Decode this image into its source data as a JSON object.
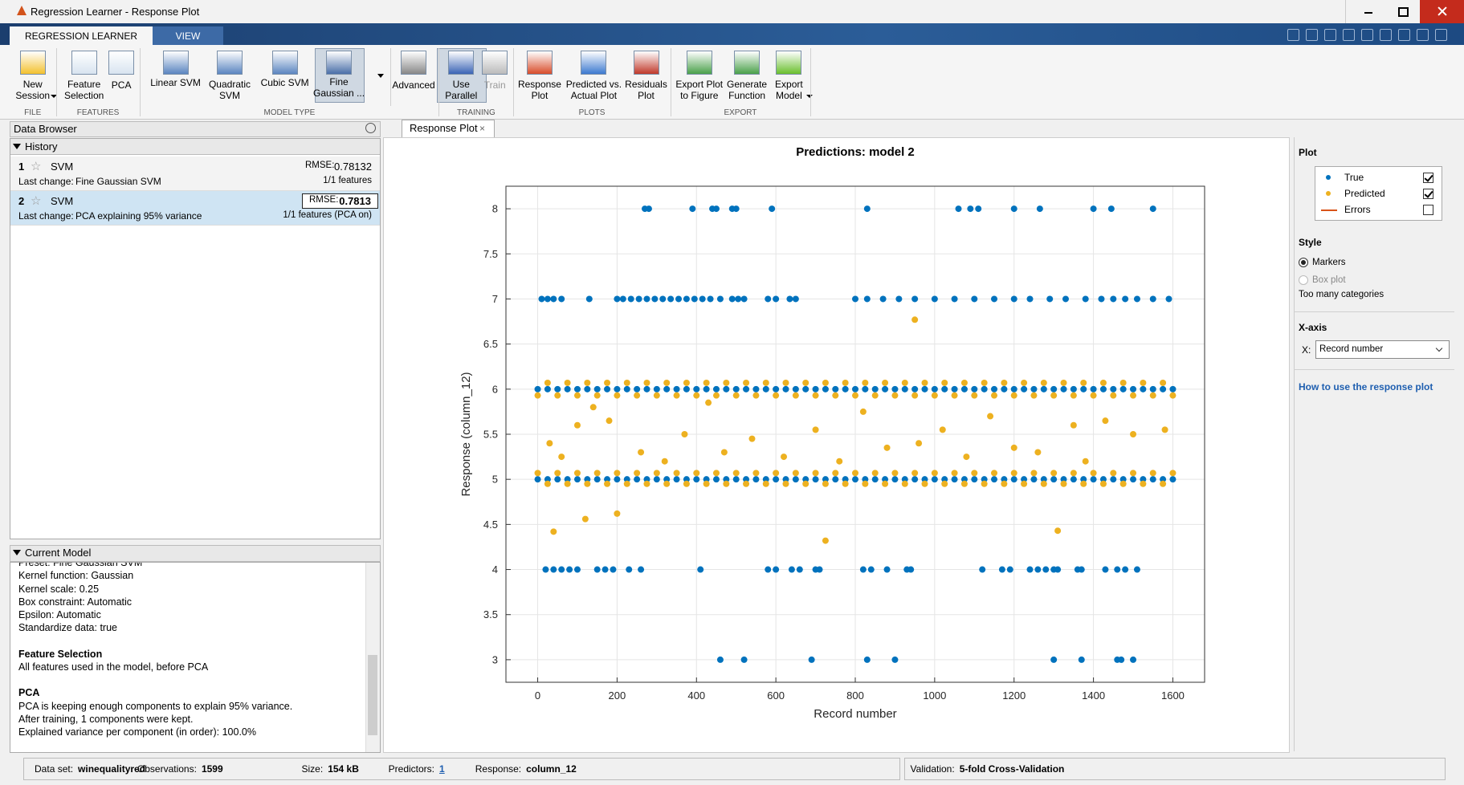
{
  "window": {
    "title": "Regression Learner - Response Plot"
  },
  "tabs": [
    "REGRESSION LEARNER",
    "VIEW"
  ],
  "toolbar": {
    "buttons": [
      {
        "lines": [
          "New",
          "Session"
        ]
      },
      {
        "lines": [
          "Feature",
          "Selection"
        ]
      },
      {
        "lines": [
          "PCA"
        ]
      },
      {
        "lines": [
          "Linear SVM"
        ]
      },
      {
        "lines": [
          "Quadratic",
          "SVM"
        ]
      },
      {
        "lines": [
          "Cubic SVM"
        ]
      },
      {
        "lines": [
          "Fine",
          "Gaussian ..."
        ]
      },
      {
        "lines": [
          "Advanced"
        ]
      },
      {
        "lines": [
          "Use",
          "Parallel"
        ]
      },
      {
        "lines": [
          "Train"
        ]
      },
      {
        "lines": [
          "Response",
          "Plot"
        ]
      },
      {
        "lines": [
          "Predicted vs.",
          "Actual Plot"
        ]
      },
      {
        "lines": [
          "Residuals",
          "Plot"
        ]
      },
      {
        "lines": [
          "Export Plot",
          "to Figure"
        ]
      },
      {
        "lines": [
          "Generate",
          "Function"
        ]
      },
      {
        "lines": [
          "Export",
          "Model"
        ]
      }
    ],
    "sections": [
      "FILE",
      "FEATURES",
      "MODEL TYPE",
      "TRAINING",
      "PLOTS",
      "EXPORT"
    ]
  },
  "data_browser": {
    "title": "Data Browser",
    "history": "History",
    "models": [
      {
        "number": "1",
        "type": "SVM",
        "rmse_label": "RMSE:",
        "rmse": "0.78132",
        "change_label": "Last change:",
        "change": "Fine Gaussian SVM",
        "features": "1/1 features"
      },
      {
        "number": "2",
        "type": "SVM",
        "rmse_label": "RMSE:",
        "rmse": "0.7813",
        "change_label": "Last change:",
        "change": "PCA explaining 95% variance",
        "features": "1/1 features (PCA on)"
      }
    ]
  },
  "current_model": {
    "title": "Current Model",
    "sections": [
      {
        "lines": [
          "Preset: Fine Gaussian SVM",
          "Kernel function: Gaussian",
          "Kernel scale: 0.25",
          "Box constraint: Automatic",
          "Epsilon: Automatic",
          "Standardize data: true"
        ]
      },
      {
        "heading": "Feature Selection",
        "lines": [
          "All features used in the model, before PCA"
        ]
      },
      {
        "heading": "PCA",
        "lines": [
          "PCA is keeping enough components to explain 95% variance.",
          "After training, 1 components were kept.",
          "Explained variance per component (in order): 100.0%"
        ]
      }
    ]
  },
  "plot_tab": "Response Plot",
  "chart_data": {
    "type": "scatter",
    "title": "Predictions: model 2",
    "xlabel": "Record number",
    "ylabel": "Response (column_12)",
    "xlim": [
      -80,
      1680
    ],
    "ylim": [
      2.75,
      8.25
    ],
    "xticks": [
      0,
      200,
      400,
      600,
      800,
      1000,
      1200,
      1400,
      1600
    ],
    "yticks": [
      3,
      3.5,
      4,
      4.5,
      5,
      5.5,
      6,
      6.5,
      7,
      7.5,
      8
    ],
    "grid": true,
    "series": [
      {
        "name": "True",
        "color": "#0072BD",
        "shown": true,
        "x": [
          270,
          280,
          390,
          440,
          450,
          490,
          500,
          590,
          830,
          1060,
          1090,
          1110,
          1200,
          1265,
          1400,
          1445,
          1550,
          10,
          25,
          40,
          60,
          130,
          200,
          215,
          235,
          255,
          275,
          295,
          315,
          335,
          355,
          375,
          395,
          415,
          435,
          460,
          490,
          505,
          520,
          580,
          600,
          635,
          650,
          800,
          830,
          870,
          910,
          950,
          1000,
          1050,
          1100,
          1150,
          1200,
          1240,
          1290,
          1330,
          1380,
          1420,
          1450,
          1480,
          1510,
          1550,
          1590,
          0,
          25,
          50,
          75,
          100,
          125,
          150,
          175,
          200,
          225,
          250,
          275,
          300,
          325,
          350,
          375,
          400,
          425,
          450,
          475,
          500,
          525,
          550,
          575,
          600,
          625,
          650,
          675,
          700,
          725,
          750,
          775,
          800,
          825,
          850,
          875,
          900,
          925,
          950,
          975,
          1000,
          1025,
          1050,
          1075,
          1100,
          1125,
          1150,
          1175,
          1200,
          1225,
          1250,
          1275,
          1300,
          1325,
          1350,
          1375,
          1400,
          1425,
          1450,
          1475,
          1500,
          1525,
          1550,
          1575,
          1600,
          0,
          25,
          50,
          75,
          100,
          125,
          150,
          175,
          200,
          225,
          250,
          275,
          300,
          325,
          350,
          375,
          400,
          425,
          450,
          475,
          500,
          525,
          550,
          575,
          600,
          625,
          650,
          675,
          700,
          725,
          750,
          775,
          800,
          825,
          850,
          875,
          900,
          925,
          950,
          975,
          1000,
          1025,
          1050,
          1075,
          1100,
          1125,
          1150,
          1175,
          1200,
          1225,
          1250,
          1275,
          1300,
          1325,
          1350,
          1375,
          1400,
          1425,
          1450,
          1475,
          1500,
          1525,
          1550,
          1575,
          1600,
          20,
          40,
          60,
          80,
          100,
          150,
          170,
          190,
          230,
          260,
          410,
          580,
          600,
          640,
          660,
          700,
          710,
          820,
          840,
          880,
          930,
          940,
          1120,
          1170,
          1190,
          1240,
          1260,
          1280,
          1300,
          1310,
          1360,
          1370,
          1430,
          1460,
          1480,
          1510,
          460,
          520,
          690,
          830,
          900,
          1300,
          1370,
          1460,
          1470,
          1500
        ],
        "values": [
          8,
          8,
          8,
          8,
          8,
          8,
          8,
          8,
          8,
          8,
          8,
          8,
          8,
          8,
          8,
          8,
          8,
          7,
          7,
          7,
          7,
          7,
          7,
          7,
          7,
          7,
          7,
          7,
          7,
          7,
          7,
          7,
          7,
          7,
          7,
          7,
          7,
          7,
          7,
          7,
          7,
          7,
          7,
          7,
          7,
          7,
          7,
          7,
          7,
          7,
          7,
          7,
          7,
          7,
          7,
          7,
          7,
          7,
          7,
          7,
          7,
          7,
          7,
          6,
          6,
          6,
          6,
          6,
          6,
          6,
          6,
          6,
          6,
          6,
          6,
          6,
          6,
          6,
          6,
          6,
          6,
          6,
          6,
          6,
          6,
          6,
          6,
          6,
          6,
          6,
          6,
          6,
          6,
          6,
          6,
          6,
          6,
          6,
          6,
          6,
          6,
          6,
          6,
          6,
          6,
          6,
          6,
          6,
          6,
          6,
          6,
          6,
          6,
          6,
          6,
          6,
          6,
          6,
          6,
          6,
          6,
          6,
          6,
          6,
          6,
          6,
          6,
          6,
          5,
          5,
          5,
          5,
          5,
          5,
          5,
          5,
          5,
          5,
          5,
          5,
          5,
          5,
          5,
          5,
          5,
          5,
          5,
          5,
          5,
          5,
          5,
          5,
          5,
          5,
          5,
          5,
          5,
          5,
          5,
          5,
          5,
          5,
          5,
          5,
          5,
          5,
          5,
          5,
          5,
          5,
          5,
          5,
          5,
          5,
          5,
          5,
          5,
          5,
          5,
          5,
          5,
          5,
          5,
          5,
          5,
          5,
          5,
          5,
          5,
          5,
          5,
          5,
          5,
          4,
          4,
          4,
          4,
          4,
          4,
          4,
          4,
          4,
          4,
          4,
          4,
          4,
          4,
          4,
          4,
          4,
          4,
          4,
          4,
          4,
          4,
          4,
          4,
          4,
          4,
          4,
          4,
          4,
          4,
          4,
          4,
          4,
          4,
          4,
          4,
          3,
          3,
          3,
          3,
          3,
          3,
          3,
          3,
          3,
          3
        ]
      },
      {
        "name": "Predicted",
        "color": "#EDB120",
        "shown": true,
        "x": [
          0,
          50,
          100,
          150,
          200,
          250,
          300,
          350,
          400,
          450,
          500,
          550,
          600,
          650,
          700,
          750,
          800,
          850,
          900,
          950,
          1000,
          1050,
          1100,
          1150,
          1200,
          1250,
          1300,
          1350,
          1400,
          1450,
          1500,
          1550,
          1600,
          25,
          75,
          125,
          175,
          225,
          275,
          325,
          375,
          425,
          475,
          525,
          575,
          625,
          675,
          725,
          775,
          825,
          875,
          925,
          975,
          1025,
          1075,
          1125,
          1175,
          1225,
          1275,
          1325,
          1375,
          1425,
          1475,
          1525,
          1575,
          0,
          50,
          100,
          150,
          200,
          250,
          300,
          350,
          400,
          450,
          500,
          550,
          600,
          650,
          700,
          750,
          800,
          850,
          900,
          950,
          1000,
          1050,
          1100,
          1150,
          1200,
          1250,
          1300,
          1350,
          1400,
          1450,
          1500,
          1550,
          1600,
          25,
          75,
          125,
          175,
          225,
          275,
          325,
          375,
          425,
          475,
          525,
          575,
          625,
          675,
          725,
          775,
          825,
          875,
          925,
          975,
          1025,
          1075,
          1125,
          1175,
          1225,
          1275,
          1325,
          1375,
          1425,
          1475,
          1525,
          1575,
          40,
          120,
          200,
          725,
          1310,
          950,
          30,
          60,
          100,
          140,
          180,
          260,
          320,
          370,
          430,
          470,
          540,
          620,
          700,
          760,
          820,
          880,
          960,
          1020,
          1080,
          1140,
          1200,
          1260,
          1350,
          1380,
          1430,
          1500,
          1580
        ],
        "values": [
          5.93,
          5.93,
          5.93,
          5.93,
          5.93,
          5.93,
          5.93,
          5.93,
          5.93,
          5.93,
          5.93,
          5.93,
          5.93,
          5.93,
          5.93,
          5.93,
          5.93,
          5.93,
          5.93,
          5.93,
          5.93,
          5.93,
          5.93,
          5.93,
          5.93,
          5.93,
          5.93,
          5.93,
          5.93,
          5.93,
          5.93,
          5.93,
          5.93,
          6.07,
          6.07,
          6.07,
          6.07,
          6.07,
          6.07,
          6.07,
          6.07,
          6.07,
          6.07,
          6.07,
          6.07,
          6.07,
          6.07,
          6.07,
          6.07,
          6.07,
          6.07,
          6.07,
          6.07,
          6.07,
          6.07,
          6.07,
          6.07,
          6.07,
          6.07,
          6.07,
          6.07,
          6.07,
          6.07,
          6.07,
          6.07,
          5.07,
          5.07,
          5.07,
          5.07,
          5.07,
          5.07,
          5.07,
          5.07,
          5.07,
          5.07,
          5.07,
          5.07,
          5.07,
          5.07,
          5.07,
          5.07,
          5.07,
          5.07,
          5.07,
          5.07,
          5.07,
          5.07,
          5.07,
          5.07,
          5.07,
          5.07,
          5.07,
          5.07,
          5.07,
          5.07,
          5.07,
          5.07,
          5.07,
          4.95,
          4.95,
          4.95,
          4.95,
          4.95,
          4.95,
          4.95,
          4.95,
          4.95,
          4.95,
          4.95,
          4.95,
          4.95,
          4.95,
          4.95,
          4.95,
          4.95,
          4.95,
          4.95,
          4.95,
          4.95,
          4.95,
          4.95,
          4.95,
          4.95,
          4.95,
          4.95,
          4.95,
          4.95,
          4.95,
          4.95,
          4.95,
          4.42,
          4.56,
          4.62,
          4.32,
          4.43,
          6.77,
          5.4,
          5.25,
          5.6,
          5.8,
          5.65,
          5.3,
          5.2,
          5.5,
          5.85,
          5.3,
          5.45,
          5.25,
          5.55,
          5.2,
          5.75,
          5.35,
          5.4,
          5.55,
          5.25,
          5.7,
          5.35,
          5.3,
          5.6,
          5.2,
          5.65,
          5.5,
          5.55
        ]
      }
    ]
  },
  "plot_panel": {
    "title": "Plot",
    "errors_label": "Errors",
    "errors_color": "#D95319",
    "errors_shown": false,
    "style_title": "Style",
    "style_options": [
      "Markers",
      "Box plot"
    ],
    "style_selected": 0,
    "style_note": "Too many categories",
    "xaxis_title": "X-axis",
    "x_label": "X:",
    "x_choice": "Record number",
    "help_link": "How to use the response plot"
  },
  "status": {
    "items": [
      {
        "label": "Data set:",
        "value": "winequalityred"
      },
      {
        "label": "Observations:",
        "value": "1599"
      },
      {
        "label": "Size:",
        "value": "154 kB"
      },
      {
        "label": "Predictors:",
        "value": "1"
      },
      {
        "label": "Response:",
        "value": "column_12"
      }
    ],
    "validation": {
      "label": "Validation:",
      "value": "5-fold Cross-Validation"
    }
  }
}
